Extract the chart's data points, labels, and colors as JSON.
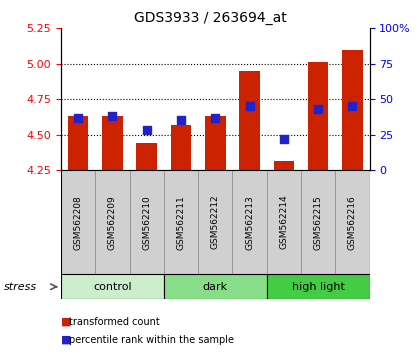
{
  "title": "GDS3933 / 263694_at",
  "samples": [
    "GSM562208",
    "GSM562209",
    "GSM562210",
    "GSM562211",
    "GSM562212",
    "GSM562213",
    "GSM562214",
    "GSM562215",
    "GSM562216"
  ],
  "transformed_count": [
    4.63,
    4.63,
    4.44,
    4.57,
    4.63,
    4.95,
    4.31,
    5.01,
    5.1
  ],
  "percentile_rank": [
    37,
    38,
    28,
    35,
    37,
    45,
    22,
    43,
    45
  ],
  "ylim_left": [
    4.25,
    5.25
  ],
  "ylim_right": [
    0,
    100
  ],
  "yticks_left": [
    4.25,
    4.5,
    4.75,
    5.0,
    5.25
  ],
  "yticks_right": [
    0,
    25,
    50,
    75,
    100
  ],
  "groups": [
    {
      "label": "control",
      "start": 0,
      "end": 3,
      "color": "#cceecc"
    },
    {
      "label": "dark",
      "start": 3,
      "end": 6,
      "color": "#88dd88"
    },
    {
      "label": "high light",
      "start": 6,
      "end": 9,
      "color": "#44cc44"
    }
  ],
  "bar_color": "#cc2200",
  "dot_color": "#2222cc",
  "bar_width": 0.6,
  "dot_size": 35,
  "background_color": "#ffffff",
  "stress_label": "stress",
  "legend_items": [
    {
      "label": "transformed count",
      "color": "#cc2200"
    },
    {
      "label": "percentile rank within the sample",
      "color": "#2222cc"
    }
  ],
  "bar_bottom": 4.25,
  "grid_yticks": [
    4.5,
    4.75,
    5.0
  ],
  "sample_box_color": "#d0d0d0",
  "sample_box_edge": "#888888"
}
